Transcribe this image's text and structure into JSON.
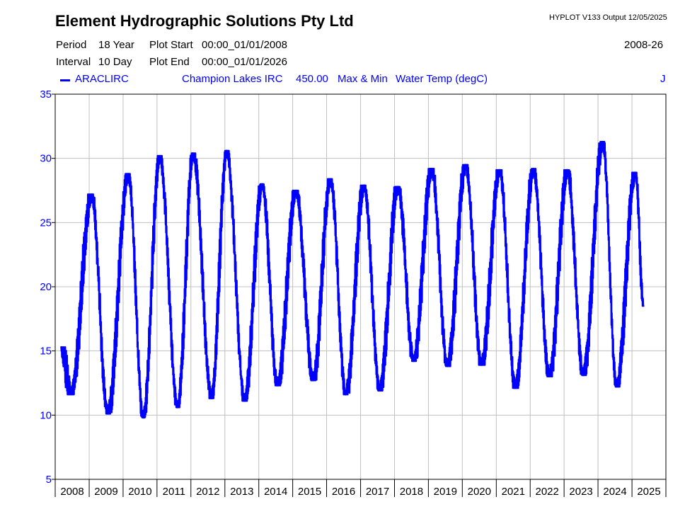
{
  "header": {
    "company": "Element Hydrographic Solutions Pty Ltd",
    "program": "HYPLOT V133  Output 12/05/2025",
    "period_label": "Period",
    "period_value": "18 Year",
    "interval_label": "Interval",
    "interval_value": "10 Day",
    "plot_start_label": "Plot Start",
    "plot_start_value": "00:00_01/01/2008",
    "plot_end_label": "Plot End",
    "plot_end_value": "00:00_01/01/2026",
    "year_range": "2008-26"
  },
  "legend": {
    "site_code": "ARACLIRC",
    "site_name": "Champion Lakes IRC",
    "variable_code": "450.00",
    "statistic": "Max & Min",
    "variable": "Water Temp (degC)",
    "quality_code": "J"
  },
  "colors": {
    "series": "#0000ff",
    "grid": "#c0c0c0",
    "axis": "#000000",
    "tick_text": "#0000ff"
  },
  "chart_data": {
    "type": "line",
    "title": "",
    "xlabel": "",
    "ylabel": "",
    "x_range": [
      "2008-01-01",
      "2026-01-01"
    ],
    "ylim": [
      5,
      35
    ],
    "yticks": [
      5,
      10,
      15,
      20,
      25,
      30,
      35
    ],
    "year_labels": [
      "2008",
      "2009",
      "2010",
      "2011",
      "2012",
      "2013",
      "2014",
      "2015",
      "2016",
      "2017",
      "2018",
      "2019",
      "2020",
      "2021",
      "2022",
      "2023",
      "2024",
      "2025"
    ],
    "grid": true,
    "series": [
      {
        "name": "ARACLIRC",
        "statistic": "Max & Min",
        "extremes": [
          {
            "date": "2008-03-05",
            "y": 15.3
          },
          {
            "date": "2008-06-20",
            "y": 11.6
          },
          {
            "date": "2009-01-25",
            "y": 27.2
          },
          {
            "date": "2009-07-20",
            "y": 10.1
          },
          {
            "date": "2010-02-25",
            "y": 28.8
          },
          {
            "date": "2010-08-05",
            "y": 9.8
          },
          {
            "date": "2011-01-30",
            "y": 30.2
          },
          {
            "date": "2011-08-10",
            "y": 10.6
          },
          {
            "date": "2012-01-25",
            "y": 30.4
          },
          {
            "date": "2012-08-10",
            "y": 11.3
          },
          {
            "date": "2013-01-20",
            "y": 30.6
          },
          {
            "date": "2013-08-01",
            "y": 11.1
          },
          {
            "date": "2014-02-05",
            "y": 28.0
          },
          {
            "date": "2014-07-20",
            "y": 12.3
          },
          {
            "date": "2015-02-05",
            "y": 27.5
          },
          {
            "date": "2015-08-10",
            "y": 12.7
          },
          {
            "date": "2016-02-10",
            "y": 28.4
          },
          {
            "date": "2016-07-25",
            "y": 11.6
          },
          {
            "date": "2017-02-05",
            "y": 27.9
          },
          {
            "date": "2017-07-25",
            "y": 11.9
          },
          {
            "date": "2018-02-05",
            "y": 27.8
          },
          {
            "date": "2018-07-25",
            "y": 14.2
          },
          {
            "date": "2019-02-05",
            "y": 29.2
          },
          {
            "date": "2019-07-25",
            "y": 13.8
          },
          {
            "date": "2020-02-05",
            "y": 29.5
          },
          {
            "date": "2020-07-25",
            "y": 13.9
          },
          {
            "date": "2021-02-05",
            "y": 29.1
          },
          {
            "date": "2021-07-25",
            "y": 12.1
          },
          {
            "date": "2022-02-05",
            "y": 29.2
          },
          {
            "date": "2022-07-25",
            "y": 13.0
          },
          {
            "date": "2023-02-05",
            "y": 29.1
          },
          {
            "date": "2023-07-25",
            "y": 13.1
          },
          {
            "date": "2024-02-20",
            "y": 31.3
          },
          {
            "date": "2024-07-20",
            "y": 12.2
          },
          {
            "date": "2025-02-05",
            "y": 28.9
          },
          {
            "date": "2025-05-05",
            "y": 18.5
          }
        ]
      }
    ]
  }
}
